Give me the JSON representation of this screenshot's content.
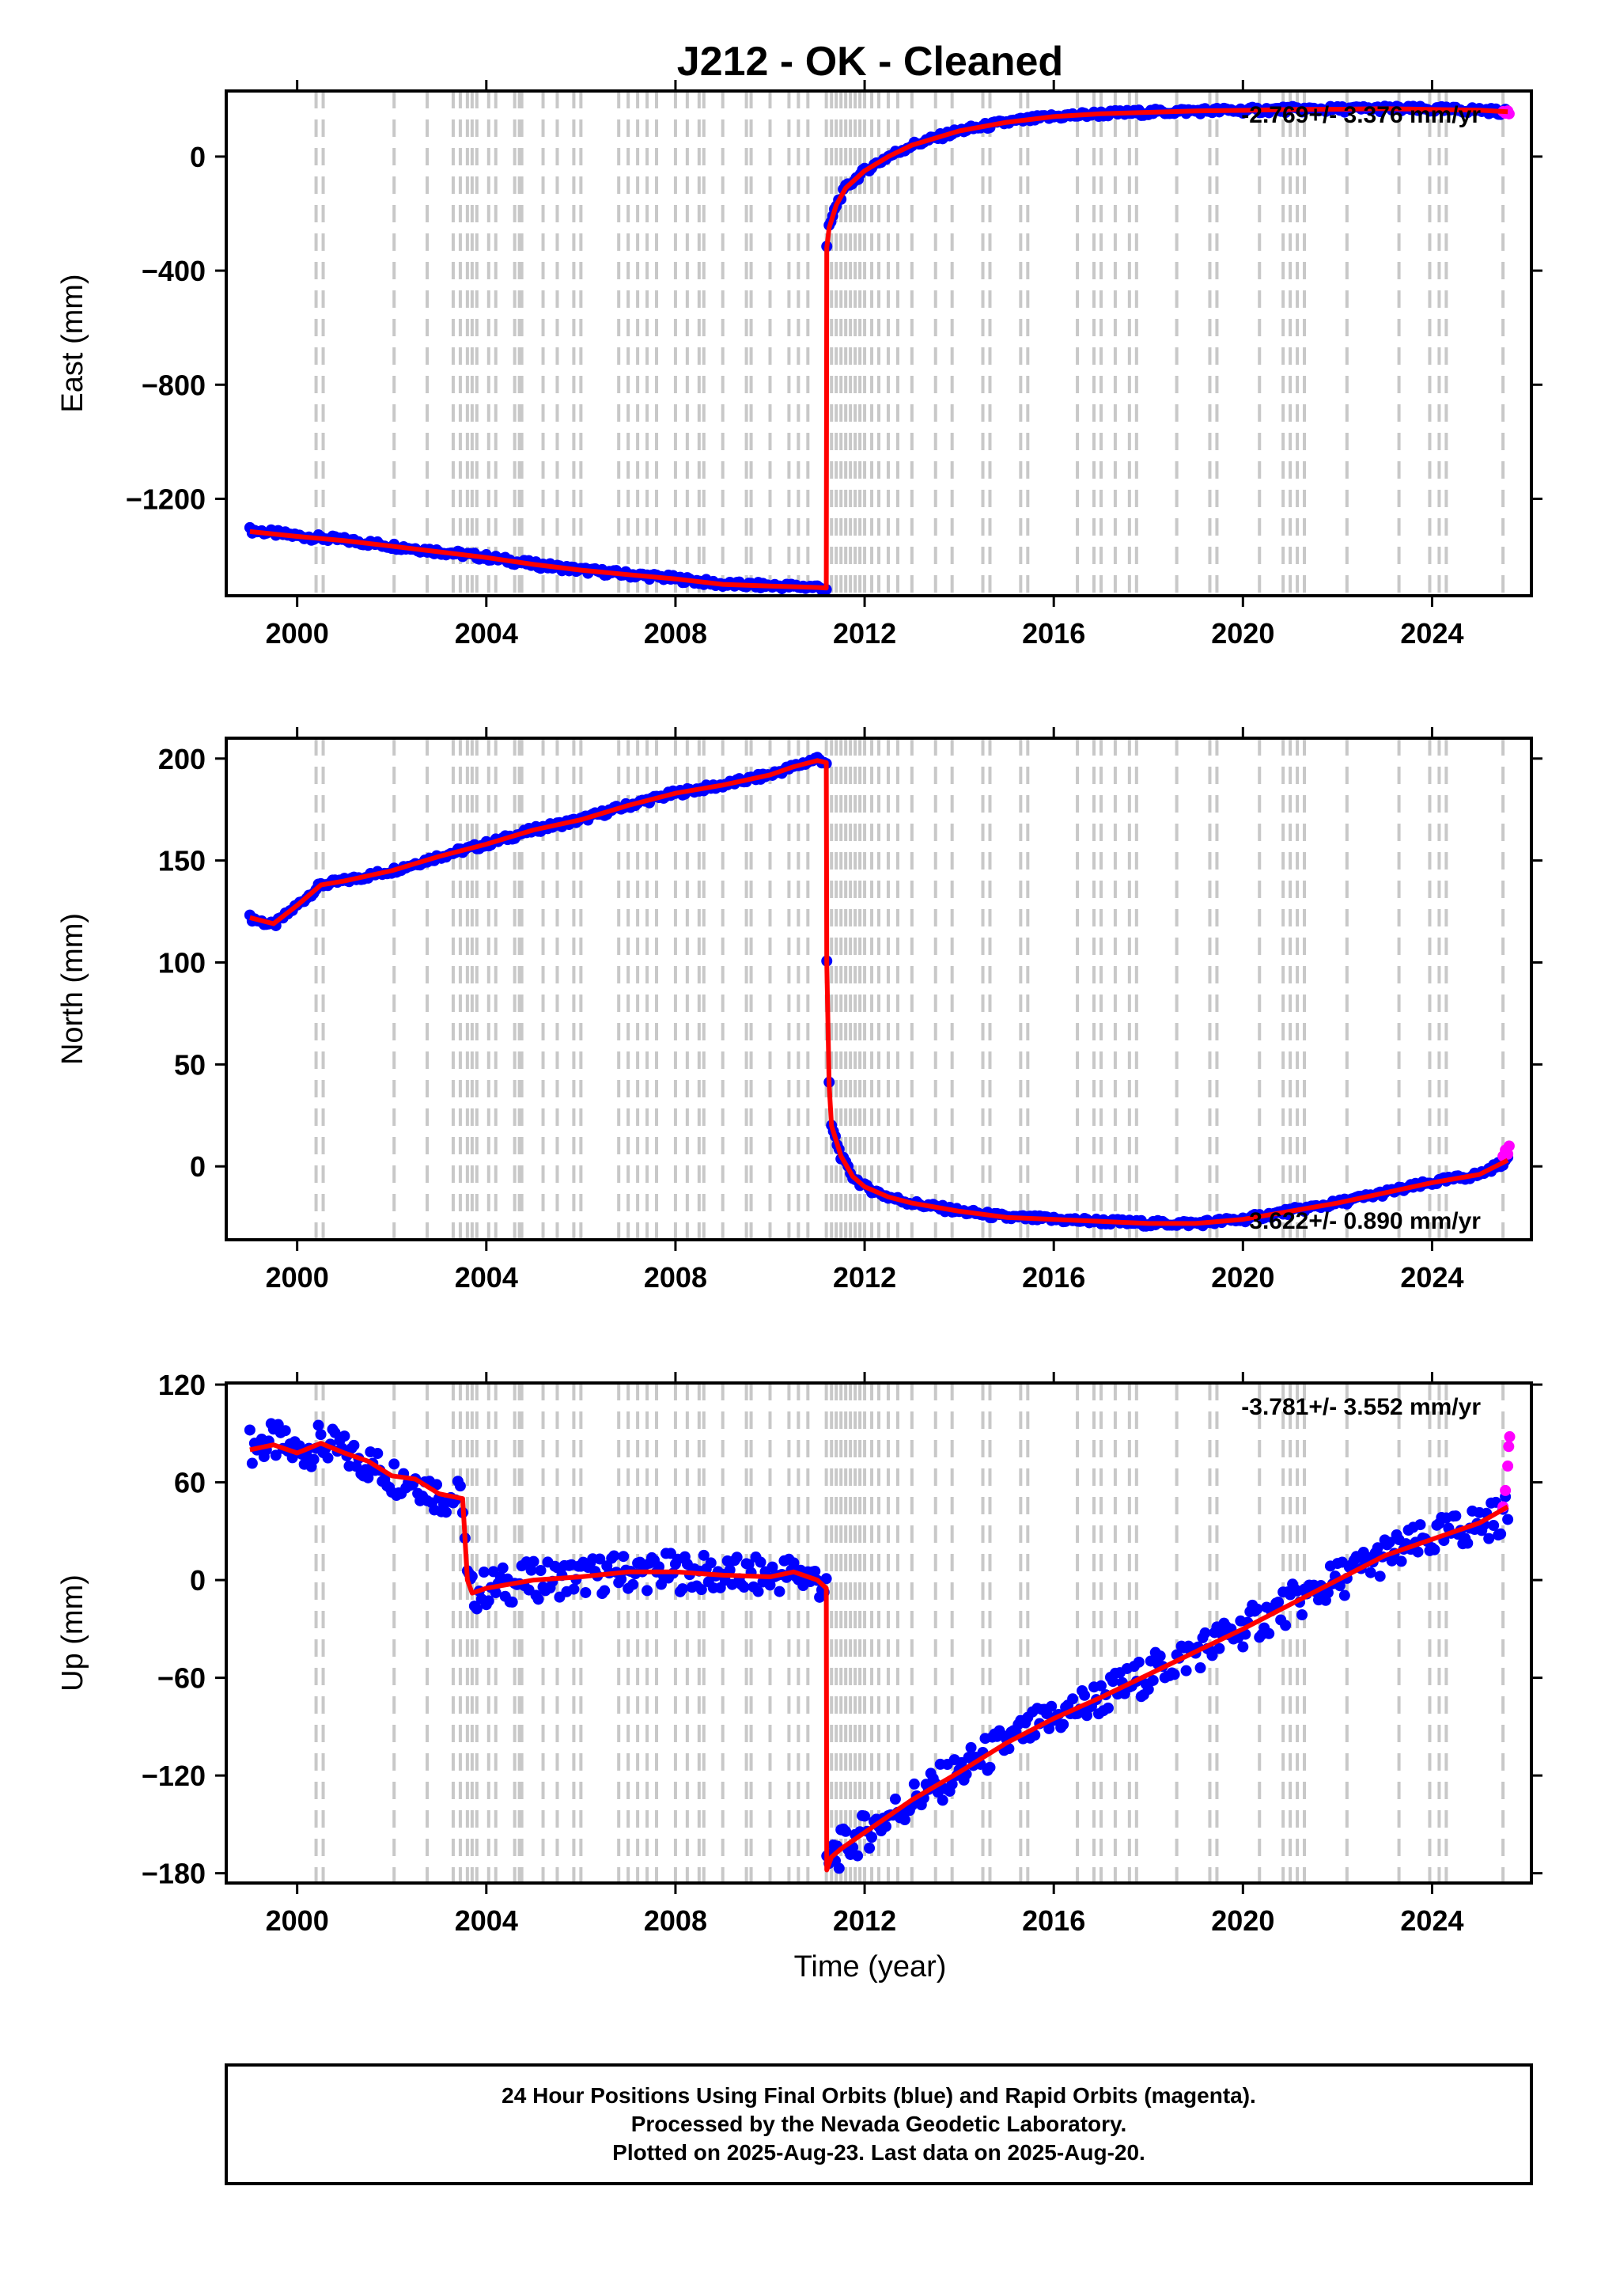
{
  "figure_title": "J212  - OK - Cleaned",
  "x_axis_title": "Time (year)",
  "footer": {
    "lines": [
      "24 Hour Positions Using Final Orbits (blue) and Rapid Orbits (magenta).",
      "Processed by the Nevada Geodetic Laboratory.",
      "Plotted on 2025-Aug-23. Last data on 2025-Aug-20."
    ]
  },
  "colors": {
    "final_orbits": "#0000ff",
    "rapid_orbits": "#ff00ff",
    "model": "#ff0000",
    "event_lines": "#c8c8c8",
    "frame": "#000000"
  },
  "chart_data": [
    {
      "id": "east",
      "type": "scatter",
      "ylabel": "East (mm)",
      "rate_label": "-2.769+/- 3.376 mm/yr",
      "rate_position": "top-right",
      "xlim": [
        1998.5,
        2026.1
      ],
      "ylim": [
        -1540,
        230
      ],
      "x_ticks": [
        2000,
        2004,
        2008,
        2012,
        2016,
        2020,
        2024
      ],
      "y_ticks": [
        0,
        -400,
        -800,
        -1200
      ],
      "grid": false,
      "series": [
        {
          "role": "final_orbits",
          "x": [
            1999.0,
            2000.0,
            2001.0,
            2002.0,
            2003.0,
            2004.0,
            2005.0,
            2006.0,
            2007.0,
            2008.0,
            2009.0,
            2010.0,
            2011.0,
            2011.19,
            2011.2,
            2011.25,
            2011.4,
            2011.6,
            2012.0,
            2012.5,
            2013.0,
            2014.0,
            2015.0,
            2016.0,
            2017.0,
            2018.0,
            2019.0,
            2020.0,
            2021.0,
            2022.0,
            2023.0,
            2024.0,
            2025.0,
            2025.6
          ],
          "y": [
            -1310,
            -1330,
            -1345,
            -1365,
            -1385,
            -1405,
            -1430,
            -1450,
            -1465,
            -1480,
            -1500,
            -1505,
            -1510,
            -1515,
            -320,
            -250,
            -170,
            -110,
            -50,
            0,
            40,
            90,
            120,
            140,
            150,
            155,
            160,
            162,
            165,
            166,
            168,
            165,
            163,
            155
          ]
        },
        {
          "role": "rapid_orbits",
          "x": [
            2025.5,
            2025.55,
            2025.6,
            2025.63
          ],
          "y": [
            158,
            152,
            160,
            150
          ]
        },
        {
          "role": "model",
          "x": [
            1999.0,
            2000.0,
            2001.0,
            2002.0,
            2003.0,
            2004.0,
            2005.0,
            2006.0,
            2007.0,
            2008.0,
            2009.0,
            2010.0,
            2011.0,
            2011.19,
            2011.2,
            2011.25,
            2011.4,
            2011.6,
            2012.0,
            2012.5,
            2013.0,
            2014.0,
            2015.0,
            2016.0,
            2017.0,
            2018.0,
            2019.0,
            2020.0,
            2021.0,
            2022.0,
            2023.0,
            2024.0,
            2025.0,
            2025.6
          ],
          "y": [
            -1315,
            -1332,
            -1347,
            -1366,
            -1386,
            -1406,
            -1430,
            -1450,
            -1466,
            -1481,
            -1500,
            -1506,
            -1511,
            -1513,
            -320,
            -250,
            -170,
            -110,
            -50,
            0,
            40,
            90,
            120,
            140,
            150,
            155,
            160,
            162,
            165,
            166,
            168,
            165,
            163,
            157
          ]
        }
      ]
    },
    {
      "id": "north",
      "type": "scatter",
      "ylabel": "North (mm)",
      "rate_label": "3.622+/- 0.890 mm/yr",
      "rate_position": "bottom-right",
      "xlim": [
        1998.5,
        2026.1
      ],
      "ylim": [
        -36,
        210
      ],
      "x_ticks": [
        2000,
        2004,
        2008,
        2012,
        2016,
        2020,
        2024
      ],
      "y_ticks": [
        200,
        150,
        100,
        50,
        0
      ],
      "grid": false,
      "series": [
        {
          "role": "final_orbits",
          "x": [
            1999.0,
            1999.5,
            2000.0,
            2000.5,
            2001.0,
            2002.0,
            2003.0,
            2004.0,
            2005.0,
            2006.0,
            2007.0,
            2008.0,
            2009.0,
            2010.0,
            2010.5,
            2011.0,
            2011.19,
            2011.2,
            2011.25,
            2011.3,
            2011.5,
            2011.75,
            2012.0,
            2012.5,
            2013.0,
            2014.0,
            2015.0,
            2016.0,
            2017.0,
            2018.0,
            2019.0,
            2020.0,
            2021.0,
            2022.0,
            2023.0,
            2024.0,
            2025.0,
            2025.6
          ],
          "y": [
            122,
            118,
            128,
            138,
            140,
            145,
            152,
            158,
            165,
            170,
            177,
            183,
            187,
            192,
            196,
            200,
            198,
            100,
            40,
            20,
            5,
            -5,
            -10,
            -15,
            -18,
            -22,
            -25,
            -26,
            -27,
            -28,
            -28,
            -26,
            -22,
            -18,
            -13,
            -8,
            -4,
            3
          ]
        },
        {
          "role": "rapid_orbits",
          "x": [
            2025.5,
            2025.55,
            2025.6,
            2025.63
          ],
          "y": [
            5,
            8,
            6,
            10
          ]
        },
        {
          "role": "model",
          "x": [
            1999.0,
            1999.5,
            2000.0,
            2000.5,
            2001.0,
            2002.0,
            2003.0,
            2004.0,
            2005.0,
            2006.0,
            2007.0,
            2008.0,
            2009.0,
            2010.0,
            2010.5,
            2011.0,
            2011.19,
            2011.2,
            2011.25,
            2011.3,
            2011.5,
            2011.75,
            2012.0,
            2012.5,
            2013.0,
            2014.0,
            2015.0,
            2016.0,
            2017.0,
            2018.0,
            2019.0,
            2020.0,
            2021.0,
            2022.0,
            2023.0,
            2024.0,
            2025.0,
            2025.6
          ],
          "y": [
            122,
            119,
            128,
            138,
            140,
            145,
            152,
            158,
            165,
            170,
            177,
            183,
            187,
            192,
            196,
            199,
            198,
            100,
            40,
            20,
            5,
            -5,
            -10,
            -15,
            -18,
            -22,
            -25,
            -26,
            -27,
            -28,
            -28,
            -26,
            -22,
            -18,
            -13,
            -8,
            -4,
            3
          ]
        }
      ]
    },
    {
      "id": "up",
      "type": "scatter",
      "ylabel": "Up (mm)",
      "rate_label": "-3.781+/- 3.552 mm/yr",
      "rate_position": "top-right",
      "xlim": [
        1998.5,
        2026.1
      ],
      "ylim": [
        -186,
        121
      ],
      "x_ticks": [
        2000,
        2004,
        2008,
        2012,
        2016,
        2020,
        2024
      ],
      "y_ticks": [
        120,
        60,
        0,
        -60,
        -120,
        -180
      ],
      "grid": false,
      "series": [
        {
          "role": "final_orbits",
          "x": [
            1999.0,
            1999.5,
            2000.0,
            2000.5,
            2001.0,
            2001.5,
            2002.0,
            2002.5,
            2003.0,
            2003.5,
            2003.6,
            2003.7,
            2004.0,
            2005.0,
            2006.0,
            2007.0,
            2008.0,
            2009.0,
            2010.0,
            2010.5,
            2011.0,
            2011.19,
            2011.2,
            2011.3,
            2011.5,
            2012.0,
            2012.5,
            2013.0,
            2014.0,
            2015.0,
            2016.0,
            2017.0,
            2018.0,
            2019.0,
            2020.0,
            2021.0,
            2022.0,
            2023.0,
            2024.0,
            2025.0,
            2025.6
          ],
          "y": [
            82,
            85,
            78,
            84,
            78,
            72,
            64,
            62,
            52,
            50,
            0,
            -8,
            -5,
            0,
            2,
            5,
            5,
            3,
            2,
            5,
            0,
            -5,
            -180,
            -170,
            -165,
            -155,
            -145,
            -135,
            -118,
            -100,
            -85,
            -72,
            -58,
            -44,
            -30,
            -15,
            0,
            15,
            25,
            35,
            40
          ]
        },
        {
          "role": "rapid_orbits",
          "x": [
            2025.5,
            2025.55,
            2025.6,
            2025.62,
            2025.64
          ],
          "y": [
            45,
            55,
            70,
            82,
            88
          ]
        },
        {
          "role": "model",
          "x": [
            1999.0,
            1999.5,
            2000.0,
            2000.5,
            2001.0,
            2001.5,
            2002.0,
            2002.5,
            2003.0,
            2003.5,
            2003.6,
            2003.7,
            2004.0,
            2005.0,
            2006.0,
            2007.0,
            2008.0,
            2009.0,
            2010.0,
            2010.5,
            2011.0,
            2011.19,
            2011.2,
            2011.3,
            2011.5,
            2012.0,
            2012.5,
            2013.0,
            2014.0,
            2015.0,
            2016.0,
            2017.0,
            2018.0,
            2019.0,
            2020.0,
            2021.0,
            2022.0,
            2023.0,
            2024.0,
            2025.0,
            2025.6
          ],
          "y": [
            80,
            83,
            78,
            84,
            78,
            73,
            64,
            62,
            53,
            50,
            0,
            -8,
            -5,
            0,
            2,
            5,
            5,
            3,
            2,
            5,
            0,
            -5,
            -178,
            -170,
            -165,
            -155,
            -145,
            -135,
            -118,
            -100,
            -85,
            -72,
            -58,
            -44,
            -30,
            -15,
            0,
            15,
            25,
            35,
            45
          ]
        }
      ]
    }
  ],
  "event_lines_years": [
    2000.4,
    2000.55,
    2002.05,
    2002.75,
    2003.3,
    2003.45,
    2003.6,
    2003.7,
    2003.8,
    2004.05,
    2004.2,
    2004.6,
    2004.7,
    2004.75,
    2005.2,
    2005.5,
    2005.85,
    2006.0,
    2006.8,
    2007.0,
    2007.2,
    2007.4,
    2007.6,
    2008.0,
    2008.25,
    2008.5,
    2008.6,
    2009.0,
    2009.5,
    2009.6,
    2010.0,
    2010.4,
    2010.6,
    2010.8,
    2011.19,
    2011.3,
    2011.4,
    2011.5,
    2011.6,
    2011.7,
    2011.8,
    2011.9,
    2012.0,
    2012.15,
    2012.3,
    2012.5,
    2012.7,
    2013.0,
    2013.5,
    2013.85,
    2014.5,
    2014.65,
    2015.3,
    2015.45,
    2016.5,
    2016.85,
    2017.0,
    2017.3,
    2017.6,
    2017.75,
    2018.6,
    2019.3,
    2019.45,
    2020.35,
    2020.85,
    2021.0,
    2021.15,
    2021.3,
    2022.2,
    2023.3,
    2023.95,
    2024.15,
    2024.3,
    2025.5
  ]
}
